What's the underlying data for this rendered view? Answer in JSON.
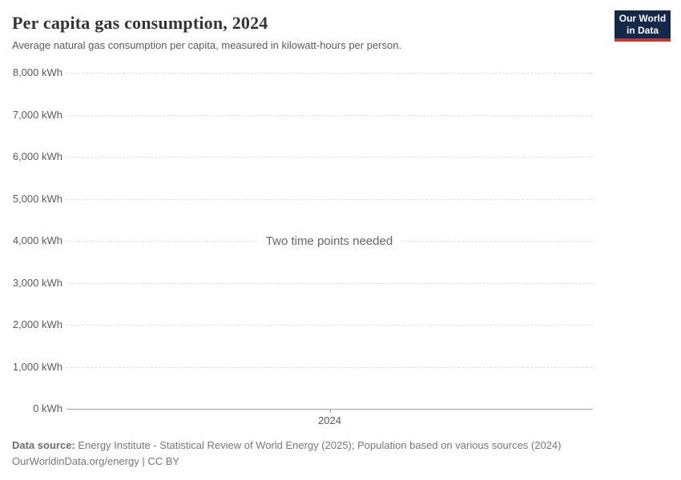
{
  "header": {
    "title": "Per capita gas consumption, 2024",
    "subtitle": "Average natural gas consumption per capita, measured in kilowatt-hours per person."
  },
  "logo": {
    "line1": "Our World",
    "line2": "in Data",
    "bg_color": "#12294a",
    "accent_color": "#c5392f"
  },
  "chart_data": {
    "type": "line",
    "title": "Per capita gas consumption, 2024",
    "subtitle": "Average natural gas consumption per capita, measured in kilowatt-hours per person.",
    "unit": "kWh",
    "series": [],
    "empty_message": "Two time points needed",
    "ylim": [
      0,
      8000
    ],
    "yticks": [
      {
        "value": 8000,
        "label": "8,000 kWh"
      },
      {
        "value": 7000,
        "label": "7,000 kWh"
      },
      {
        "value": 6000,
        "label": "6,000 kWh"
      },
      {
        "value": 5000,
        "label": "5,000 kWh"
      },
      {
        "value": 4000,
        "label": "4,000 kWh"
      },
      {
        "value": 3000,
        "label": "3,000 kWh"
      },
      {
        "value": 2000,
        "label": "2,000 kWh"
      },
      {
        "value": 1000,
        "label": "1,000 kWh"
      },
      {
        "value": 0,
        "label": "0 kWh"
      }
    ],
    "xticks": [
      {
        "label": "2024",
        "x_fraction": 0.5
      }
    ],
    "grid": "horizontal-dashed",
    "legend_position": "none",
    "gridline_color": "#dbdfe3",
    "axis_color": "#a3a3a3"
  },
  "footer": {
    "datasource_label": "Data source:",
    "datasource_text": " Energy Institute - Statistical Review of World Energy (2025); Population based on various sources (2024)",
    "license_line": "OurWorldinData.org/energy | CC BY"
  }
}
